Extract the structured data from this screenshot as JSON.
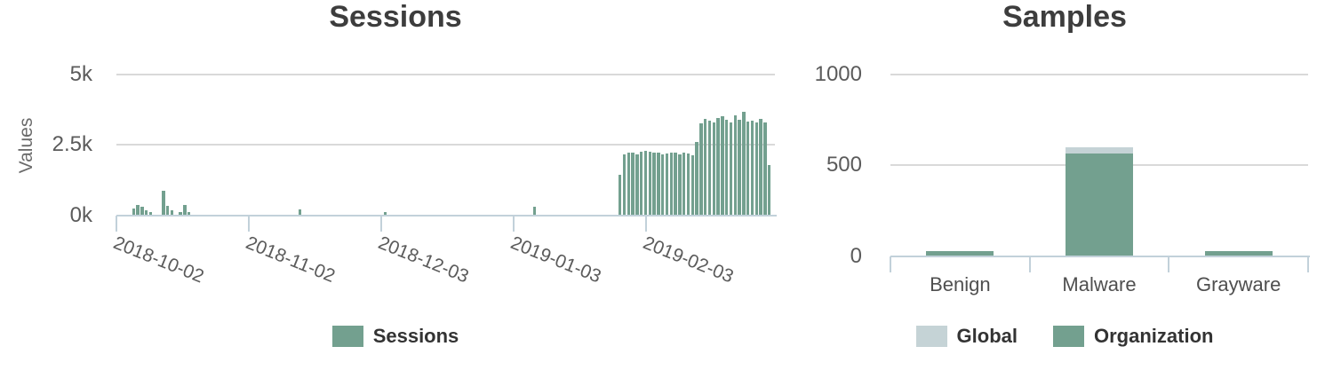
{
  "colors": {
    "organization_green": "#73a08f",
    "global_gray": "#c5d3d6",
    "axis_line": "#c2d1da",
    "gridline": "#d9d9d9",
    "title_text": "#3d3d3d",
    "axis_text": "#5b5b5b",
    "legend_text": "#333333"
  },
  "chart_data": [
    {
      "type": "bar",
      "title": "Sessions",
      "xlabel": "",
      "ylabel": "Values",
      "ylim": [
        0,
        5000
      ],
      "grid": true,
      "legend_position": "bottom",
      "yticks": {
        "values": [
          5000,
          2500,
          0
        ],
        "labels": [
          "5k",
          "2.5k",
          "0k"
        ]
      },
      "xticks": [
        "2018-10-02",
        "2018-11-02",
        "2018-12-03",
        "2019-01-03",
        "2019-02-03"
      ],
      "x_range": [
        "2018-10-02",
        "2019-03-06"
      ],
      "legend": [
        "Sessions"
      ],
      "series": [
        {
          "name": "Sessions",
          "points": [
            [
              "2018-10-06",
              250
            ],
            [
              "2018-10-07",
              360
            ],
            [
              "2018-10-08",
              300
            ],
            [
              "2018-10-09",
              170
            ],
            [
              "2018-10-10",
              110
            ],
            [
              "2018-10-13",
              870
            ],
            [
              "2018-10-14",
              330
            ],
            [
              "2018-10-15",
              170
            ],
            [
              "2018-10-17",
              110
            ],
            [
              "2018-10-18",
              350
            ],
            [
              "2018-10-19",
              110
            ],
            [
              "2018-11-14",
              215
            ],
            [
              "2018-12-04",
              95
            ],
            [
              "2019-01-08",
              305
            ],
            [
              "2019-01-28",
              1440
            ],
            [
              "2019-01-29",
              2165
            ],
            [
              "2019-01-30",
              2230
            ],
            [
              "2019-01-31",
              2210
            ],
            [
              "2019-02-01",
              2160
            ],
            [
              "2019-02-02",
              2240
            ],
            [
              "2019-02-03",
              2300
            ],
            [
              "2019-02-04",
              2270
            ],
            [
              "2019-02-05",
              2210
            ],
            [
              "2019-02-06",
              2230
            ],
            [
              "2019-02-07",
              2160
            ],
            [
              "2019-02-08",
              2190
            ],
            [
              "2019-02-09",
              2230
            ],
            [
              "2019-02-10",
              2210
            ],
            [
              "2019-02-11",
              2150
            ],
            [
              "2019-02-12",
              2230
            ],
            [
              "2019-02-13",
              2180
            ],
            [
              "2019-02-14",
              2120
            ],
            [
              "2019-02-15",
              2590
            ],
            [
              "2019-02-16",
              3280
            ],
            [
              "2019-02-17",
              3420
            ],
            [
              "2019-02-18",
              3350
            ],
            [
              "2019-02-19",
              3300
            ],
            [
              "2019-02-20",
              3460
            ],
            [
              "2019-02-21",
              3520
            ],
            [
              "2019-02-22",
              3380
            ],
            [
              "2019-02-23",
              3300
            ],
            [
              "2019-02-24",
              3560
            ],
            [
              "2019-02-25",
              3400
            ],
            [
              "2019-02-26",
              3660
            ],
            [
              "2019-02-27",
              3330
            ],
            [
              "2019-02-28",
              3360
            ],
            [
              "2019-03-01",
              3300
            ],
            [
              "2019-03-02",
              3430
            ],
            [
              "2019-03-03",
              3310
            ],
            [
              "2019-03-04",
              1780
            ]
          ]
        }
      ]
    },
    {
      "type": "bar",
      "title": "Samples",
      "xlabel": "",
      "ylabel": "",
      "ylim": [
        0,
        1000
      ],
      "grid": true,
      "legend_position": "bottom",
      "yticks": {
        "values": [
          1000,
          500,
          0
        ],
        "labels": [
          "1000",
          "500",
          "0"
        ]
      },
      "categories": [
        "Benign",
        "Malware",
        "Grayware"
      ],
      "legend": [
        "Global",
        "Organization"
      ],
      "series": [
        {
          "name": "Global",
          "values": [
            25,
            600,
            25
          ]
        },
        {
          "name": "Organization",
          "values": [
            25,
            565,
            25
          ]
        }
      ]
    }
  ]
}
